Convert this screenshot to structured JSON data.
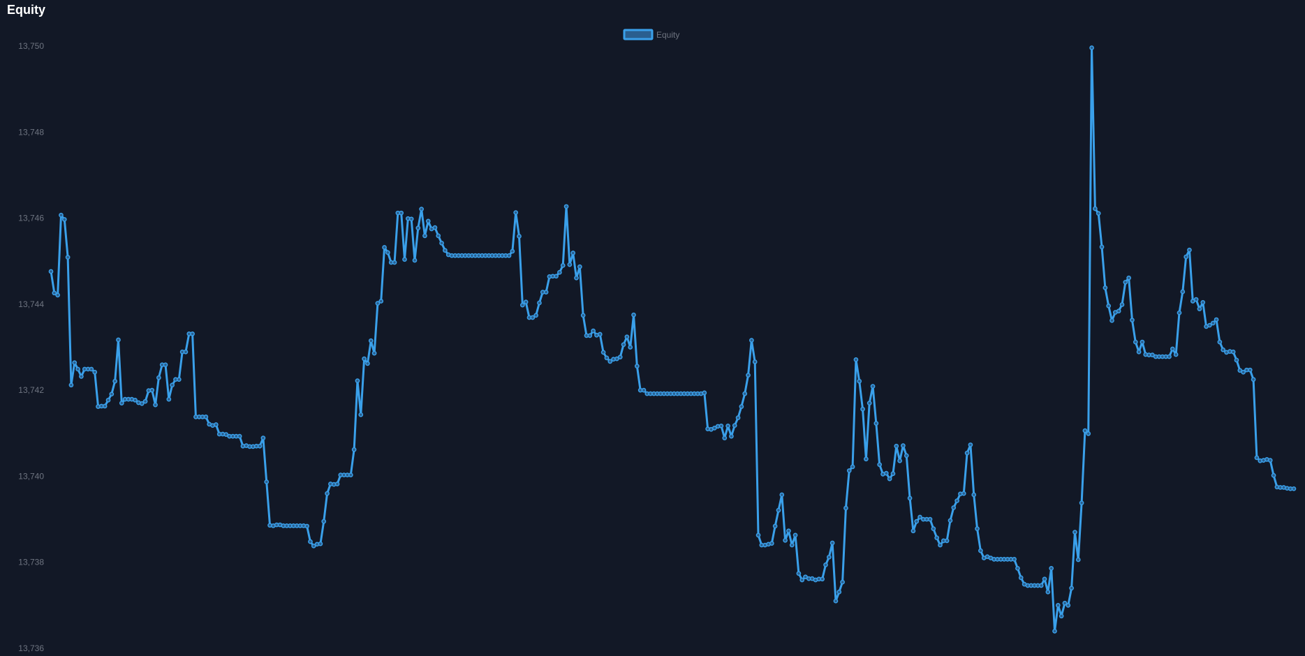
{
  "page": {
    "title": "Equity"
  },
  "chart_data": {
    "type": "line",
    "title": "Equity",
    "xlabel": "",
    "ylabel": "",
    "ylim": [
      13736,
      13750
    ],
    "y_ticks": [
      "13,736",
      "13,738",
      "13,740",
      "13,742",
      "13,744",
      "13,746",
      "13,748",
      "13,750"
    ],
    "grid": false,
    "legend_position": "top-center",
    "colors": {
      "line": "#3aa0ea",
      "legend_fill": "#2a5f8f"
    },
    "series": [
      {
        "name": "Equity",
        "values": [
          13744.76,
          13744.26,
          13744.21,
          13746.07,
          13745.97,
          13745.09,
          13742.12,
          13742.64,
          13742.49,
          13742.32,
          13742.49,
          13742.49,
          13742.49,
          13742.42,
          13741.62,
          13741.63,
          13741.63,
          13741.77,
          13741.91,
          13742.21,
          13743.17,
          13741.7,
          13741.79,
          13741.79,
          13741.79,
          13741.77,
          13741.71,
          13741.69,
          13741.74,
          13741.99,
          13742.0,
          13741.66,
          13742.29,
          13742.59,
          13742.59,
          13741.79,
          13742.12,
          13742.25,
          13742.25,
          13742.89,
          13742.89,
          13743.31,
          13743.31,
          13741.38,
          13741.38,
          13741.38,
          13741.38,
          13741.21,
          13741.18,
          13741.2,
          13740.98,
          13740.98,
          13740.97,
          13740.93,
          13740.93,
          13740.93,
          13740.93,
          13740.7,
          13740.71,
          13740.69,
          13740.69,
          13740.7,
          13740.7,
          13740.89,
          13739.87,
          13738.86,
          13738.85,
          13738.87,
          13738.87,
          13738.85,
          13738.85,
          13738.85,
          13738.85,
          13738.85,
          13738.85,
          13738.85,
          13738.84,
          13738.48,
          13738.38,
          13738.42,
          13738.43,
          13738.95,
          13739.6,
          13739.82,
          13739.81,
          13739.82,
          13740.03,
          13740.03,
          13740.03,
          13740.03,
          13740.62,
          13742.22,
          13741.43,
          13742.73,
          13742.62,
          13743.15,
          13742.86,
          13744.02,
          13744.07,
          13745.32,
          13745.2,
          13744.97,
          13744.97,
          13746.12,
          13746.12,
          13745.04,
          13745.99,
          13745.98,
          13745.02,
          13745.77,
          13746.21,
          13745.59,
          13745.93,
          13745.75,
          13745.78,
          13745.59,
          13745.42,
          13745.25,
          13745.15,
          13745.13,
          13745.13,
          13745.13,
          13745.13,
          13745.13,
          13745.13,
          13745.13,
          13745.13,
          13745.13,
          13745.13,
          13745.13,
          13745.13,
          13745.13,
          13745.13,
          13745.13,
          13745.13,
          13745.13,
          13745.13,
          13745.23,
          13746.13,
          13745.58,
          13743.98,
          13744.05,
          13743.69,
          13743.69,
          13743.74,
          13744.03,
          13744.28,
          13744.28,
          13744.64,
          13744.65,
          13744.65,
          13744.74,
          13744.9,
          13746.27,
          13744.92,
          13745.19,
          13744.61,
          13744.87,
          13743.74,
          13743.27,
          13743.27,
          13743.38,
          13743.28,
          13743.3,
          13742.88,
          13742.75,
          13742.67,
          13742.72,
          13742.73,
          13742.77,
          13743.06,
          13743.24,
          13743.0,
          13743.75,
          13742.56,
          13742.0,
          13742.0,
          13741.92,
          13741.92,
          13741.92,
          13741.92,
          13741.92,
          13741.92,
          13741.92,
          13741.92,
          13741.92,
          13741.92,
          13741.92,
          13741.92,
          13741.92,
          13741.92,
          13741.92,
          13741.92,
          13741.92,
          13741.94,
          13741.1,
          13741.09,
          13741.12,
          13741.16,
          13741.17,
          13740.89,
          13741.17,
          13740.93,
          13741.18,
          13741.36,
          13741.62,
          13741.92,
          13742.35,
          13743.16,
          13742.66,
          13738.63,
          13738.4,
          13738.4,
          13738.42,
          13738.44,
          13738.84,
          13739.21,
          13739.57,
          13738.51,
          13738.73,
          13738.4,
          13738.63,
          13737.74,
          13737.59,
          13737.66,
          13737.62,
          13737.62,
          13737.59,
          13737.61,
          13737.61,
          13737.94,
          13738.12,
          13738.45,
          13737.1,
          13737.31,
          13737.54,
          13739.26,
          13740.13,
          13740.22,
          13742.71,
          13742.21,
          13741.56,
          13740.4,
          13741.7,
          13742.09,
          13741.23,
          13740.27,
          13740.05,
          13740.07,
          13739.94,
          13740.06,
          13740.7,
          13740.36,
          13740.71,
          13740.48,
          13739.49,
          13738.73,
          13738.95,
          13739.05,
          13739.0,
          13739.0,
          13739.0,
          13738.78,
          13738.57,
          13738.4,
          13738.5,
          13738.5,
          13738.97,
          13739.27,
          13739.43,
          13739.59,
          13739.6,
          13740.54,
          13740.73,
          13739.57,
          13738.78,
          13738.27,
          13738.1,
          13738.13,
          13738.1,
          13738.07,
          13738.07,
          13738.07,
          13738.07,
          13738.07,
          13738.07,
          13738.07,
          13737.86,
          13737.64,
          13737.49,
          13737.46,
          13737.46,
          13737.46,
          13737.46,
          13737.46,
          13737.61,
          13737.31,
          13737.86,
          13736.4,
          13737.0,
          13736.75,
          13737.05,
          13737.0,
          13737.4,
          13738.7,
          13738.06,
          13739.38,
          13741.06,
          13740.99,
          13749.96,
          13746.22,
          13746.11,
          13745.33,
          13744.38,
          13743.96,
          13743.62,
          13743.81,
          13743.84,
          13743.99,
          13744.51,
          13744.61,
          13743.63,
          13743.12,
          13742.89,
          13743.12,
          13742.83,
          13742.82,
          13742.82,
          13742.78,
          13742.78,
          13742.78,
          13742.78,
          13742.78,
          13742.96,
          13742.83,
          13743.8,
          13744.29,
          13745.1,
          13745.26,
          13744.07,
          13744.11,
          13743.89,
          13744.04,
          13743.48,
          13743.51,
          13743.56,
          13743.64,
          13743.12,
          13742.94,
          13742.88,
          13742.9,
          13742.89,
          13742.7,
          13742.46,
          13742.42,
          13742.47,
          13742.47,
          13742.25,
          13740.43,
          13740.36,
          13740.37,
          13740.39,
          13740.37,
          13740.02,
          13739.75,
          13739.74,
          13739.74,
          13739.72,
          13739.71,
          13739.71
        ]
      }
    ]
  }
}
